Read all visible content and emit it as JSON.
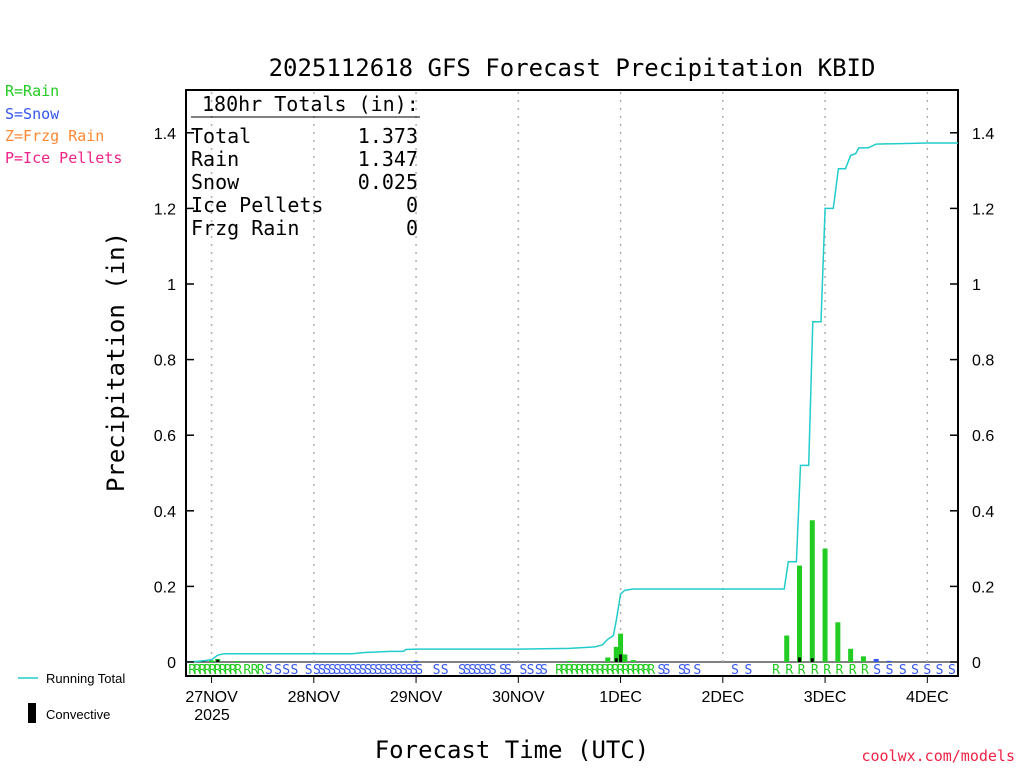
{
  "chart_data": {
    "type": "bar",
    "title": "2025112618 GFS Forecast Precipitation KBID",
    "xlabel": "Forecast Time (UTC)",
    "ylabel": "Precipitation (in)",
    "ylim": [
      0,
      1.5
    ],
    "yticks": [
      0,
      0.2,
      0.4,
      0.6,
      0.8,
      1,
      1.2,
      1.4
    ],
    "xlim": [
      -0.25,
      7.3
    ],
    "xticks": [
      {
        "x": 0,
        "label": "27NOV"
      },
      {
        "x": 1,
        "label": "28NOV"
      },
      {
        "x": 2,
        "label": "29NOV"
      },
      {
        "x": 3,
        "label": "30NOV"
      },
      {
        "x": 4,
        "label": "1DEC"
      },
      {
        "x": 5,
        "label": "2DEC"
      },
      {
        "x": 6,
        "label": "3DEC"
      },
      {
        "x": 7,
        "label": "4DEC"
      }
    ],
    "year_label": "2025",
    "legend": {
      "types": [
        {
          "label": "R=Rain",
          "color": "#22cc22"
        },
        {
          "label": "S=Snow",
          "color": "#3355ee"
        },
        {
          "label": "Z=Frzg Rain",
          "color": "#ff8833"
        },
        {
          "label": "P=Ice Pellets",
          "color": "#ee2288"
        }
      ],
      "running_total": {
        "label": "Running Total",
        "color": "#22cccc"
      },
      "convective": {
        "label": "Convective",
        "color": "#000000"
      }
    },
    "totals": {
      "header": "180hr Totals (in):",
      "rows": [
        {
          "label": "Total",
          "value": "1.373"
        },
        {
          "label": "Rain",
          "value": "1.347"
        },
        {
          "label": "Snow",
          "value": "0.025"
        },
        {
          "label": "Ice Pellets",
          "value": "0"
        },
        {
          "label": "Frzg Rain",
          "value": "0"
        }
      ]
    },
    "series": [
      {
        "name": "Precipitation",
        "points": [
          {
            "x": -0.125,
            "value": 0.002,
            "type": "R"
          },
          {
            "x": 0.0,
            "value": 0.004,
            "type": "R"
          },
          {
            "x": 0.06,
            "value": 0.008,
            "type": "R"
          },
          {
            "x": 0.25,
            "value": 0.002,
            "type": "R"
          },
          {
            "x": 2.0,
            "value": 0.003,
            "type": "S"
          },
          {
            "x": 3.5,
            "value": 0.003,
            "type": "R"
          },
          {
            "x": 3.875,
            "value": 0.012,
            "type": "R"
          },
          {
            "x": 3.958,
            "value": 0.04,
            "type": "R"
          },
          {
            "x": 4.0,
            "value": 0.075,
            "type": "R"
          },
          {
            "x": 4.042,
            "value": 0.02,
            "type": "R"
          },
          {
            "x": 4.125,
            "value": 0.005,
            "type": "R"
          },
          {
            "x": 5.625,
            "value": 0.07,
            "type": "R"
          },
          {
            "x": 5.75,
            "value": 0.255,
            "type": "R"
          },
          {
            "x": 5.875,
            "value": 0.375,
            "type": "R"
          },
          {
            "x": 6.0,
            "value": 0.3,
            "type": "R"
          },
          {
            "x": 6.125,
            "value": 0.105,
            "type": "R"
          },
          {
            "x": 6.25,
            "value": 0.035,
            "type": "R"
          },
          {
            "x": 6.375,
            "value": 0.015,
            "type": "R"
          },
          {
            "x": 6.5,
            "value": 0.008,
            "type": "S"
          },
          {
            "x": 6.625,
            "value": 0.003,
            "type": "S"
          }
        ]
      },
      {
        "name": "Convective",
        "points": [
          {
            "x": 0.06,
            "value": 0.006
          },
          {
            "x": 3.958,
            "value": 0.01
          },
          {
            "x": 4.0,
            "value": 0.02
          },
          {
            "x": 5.75,
            "value": 0.012
          },
          {
            "x": 5.875,
            "value": 0.01
          }
        ]
      },
      {
        "name": "Running Total",
        "points": [
          [
            -0.25,
            0.0
          ],
          [
            -0.125,
            0.002
          ],
          [
            0.0,
            0.006
          ],
          [
            0.06,
            0.018
          ],
          [
            0.125,
            0.022
          ],
          [
            0.5,
            0.022
          ],
          [
            1.0,
            0.022
          ],
          [
            1.375,
            0.022
          ],
          [
            1.5,
            0.025
          ],
          [
            1.75,
            0.028
          ],
          [
            1.875,
            0.028
          ],
          [
            1.9,
            0.033
          ],
          [
            2.0,
            0.034
          ],
          [
            2.5,
            0.034
          ],
          [
            3.0,
            0.034
          ],
          [
            3.5,
            0.036
          ],
          [
            3.75,
            0.04
          ],
          [
            3.82,
            0.045
          ],
          [
            3.875,
            0.06
          ],
          [
            3.93,
            0.07
          ],
          [
            3.958,
            0.11
          ],
          [
            4.0,
            0.18
          ],
          [
            4.042,
            0.19
          ],
          [
            4.125,
            0.193
          ],
          [
            4.5,
            0.193
          ],
          [
            5.0,
            0.193
          ],
          [
            5.6,
            0.193
          ],
          [
            5.64,
            0.265
          ],
          [
            5.72,
            0.265
          ],
          [
            5.76,
            0.52
          ],
          [
            5.84,
            0.52
          ],
          [
            5.88,
            0.9
          ],
          [
            5.96,
            0.9
          ],
          [
            6.0,
            1.2
          ],
          [
            6.08,
            1.2
          ],
          [
            6.13,
            1.305
          ],
          [
            6.2,
            1.305
          ],
          [
            6.25,
            1.34
          ],
          [
            6.3,
            1.345
          ],
          [
            6.33,
            1.36
          ],
          [
            6.42,
            1.36
          ],
          [
            6.5,
            1.37
          ],
          [
            7.0,
            1.373
          ],
          [
            7.3,
            1.373
          ]
        ]
      }
    ],
    "ptype_strip": [
      {
        "x": -0.19,
        "type": "R"
      },
      {
        "x": -0.14,
        "type": "R"
      },
      {
        "x": -0.09,
        "type": "R"
      },
      {
        "x": -0.04,
        "type": "R"
      },
      {
        "x": 0.01,
        "type": "R"
      },
      {
        "x": 0.06,
        "type": "R"
      },
      {
        "x": 0.11,
        "type": "R"
      },
      {
        "x": 0.16,
        "type": "R"
      },
      {
        "x": 0.21,
        "type": "R"
      },
      {
        "x": 0.26,
        "type": "R"
      },
      {
        "x": 0.35,
        "type": "R"
      },
      {
        "x": 0.42,
        "type": "R"
      },
      {
        "x": 0.48,
        "type": "R"
      },
      {
        "x": 0.56,
        "type": "S"
      },
      {
        "x": 0.65,
        "type": "S"
      },
      {
        "x": 0.73,
        "type": "S"
      },
      {
        "x": 0.81,
        "type": "S"
      },
      {
        "x": 0.95,
        "type": "S"
      },
      {
        "x": 1.03,
        "type": "S"
      },
      {
        "x": 1.08,
        "type": "S"
      },
      {
        "x": 1.13,
        "type": "S"
      },
      {
        "x": 1.18,
        "type": "S"
      },
      {
        "x": 1.23,
        "type": "S"
      },
      {
        "x": 1.28,
        "type": "S"
      },
      {
        "x": 1.33,
        "type": "S"
      },
      {
        "x": 1.38,
        "type": "S"
      },
      {
        "x": 1.43,
        "type": "S"
      },
      {
        "x": 1.48,
        "type": "S"
      },
      {
        "x": 1.53,
        "type": "S"
      },
      {
        "x": 1.58,
        "type": "S"
      },
      {
        "x": 1.63,
        "type": "S"
      },
      {
        "x": 1.68,
        "type": "S"
      },
      {
        "x": 1.73,
        "type": "S"
      },
      {
        "x": 1.78,
        "type": "S"
      },
      {
        "x": 1.83,
        "type": "S"
      },
      {
        "x": 1.88,
        "type": "S"
      },
      {
        "x": 1.93,
        "type": "S"
      },
      {
        "x": 1.98,
        "type": "S"
      },
      {
        "x": 2.03,
        "type": "S"
      },
      {
        "x": 2.2,
        "type": "S"
      },
      {
        "x": 2.28,
        "type": "S"
      },
      {
        "x": 2.45,
        "type": "S"
      },
      {
        "x": 2.5,
        "type": "S"
      },
      {
        "x": 2.55,
        "type": "S"
      },
      {
        "x": 2.6,
        "type": "S"
      },
      {
        "x": 2.65,
        "type": "S"
      },
      {
        "x": 2.7,
        "type": "S"
      },
      {
        "x": 2.75,
        "type": "S"
      },
      {
        "x": 2.85,
        "type": "S"
      },
      {
        "x": 2.9,
        "type": "S"
      },
      {
        "x": 3.05,
        "type": "S"
      },
      {
        "x": 3.12,
        "type": "S"
      },
      {
        "x": 3.2,
        "type": "S"
      },
      {
        "x": 3.25,
        "type": "S"
      },
      {
        "x": 3.4,
        "type": "R"
      },
      {
        "x": 3.45,
        "type": "R"
      },
      {
        "x": 3.5,
        "type": "R"
      },
      {
        "x": 3.55,
        "type": "R"
      },
      {
        "x": 3.6,
        "type": "R"
      },
      {
        "x": 3.65,
        "type": "R"
      },
      {
        "x": 3.7,
        "type": "R"
      },
      {
        "x": 3.75,
        "type": "R"
      },
      {
        "x": 3.8,
        "type": "R"
      },
      {
        "x": 3.85,
        "type": "R"
      },
      {
        "x": 3.9,
        "type": "R"
      },
      {
        "x": 3.95,
        "type": "R"
      },
      {
        "x": 4.0,
        "type": "R"
      },
      {
        "x": 4.05,
        "type": "R"
      },
      {
        "x": 4.1,
        "type": "R"
      },
      {
        "x": 4.15,
        "type": "R"
      },
      {
        "x": 4.2,
        "type": "R"
      },
      {
        "x": 4.25,
        "type": "R"
      },
      {
        "x": 4.3,
        "type": "R"
      },
      {
        "x": 4.4,
        "type": "S"
      },
      {
        "x": 4.45,
        "type": "S"
      },
      {
        "x": 4.6,
        "type": "S"
      },
      {
        "x": 4.65,
        "type": "S"
      },
      {
        "x": 4.75,
        "type": "S"
      },
      {
        "x": 5.12,
        "type": "S"
      },
      {
        "x": 5.25,
        "type": "S"
      },
      {
        "x": 5.52,
        "type": "R"
      },
      {
        "x": 5.65,
        "type": "R"
      },
      {
        "x": 5.77,
        "type": "R"
      },
      {
        "x": 5.9,
        "type": "R"
      },
      {
        "x": 6.02,
        "type": "R"
      },
      {
        "x": 6.14,
        "type": "R"
      },
      {
        "x": 6.27,
        "type": "R"
      },
      {
        "x": 6.39,
        "type": "R"
      },
      {
        "x": 6.51,
        "type": "S"
      },
      {
        "x": 6.63,
        "type": "S"
      },
      {
        "x": 6.76,
        "type": "S"
      },
      {
        "x": 6.88,
        "type": "S"
      },
      {
        "x": 7.0,
        "type": "S"
      },
      {
        "x": 7.12,
        "type": "S"
      },
      {
        "x": 7.24,
        "type": "S"
      }
    ]
  },
  "credit": "coolwx.com/models"
}
